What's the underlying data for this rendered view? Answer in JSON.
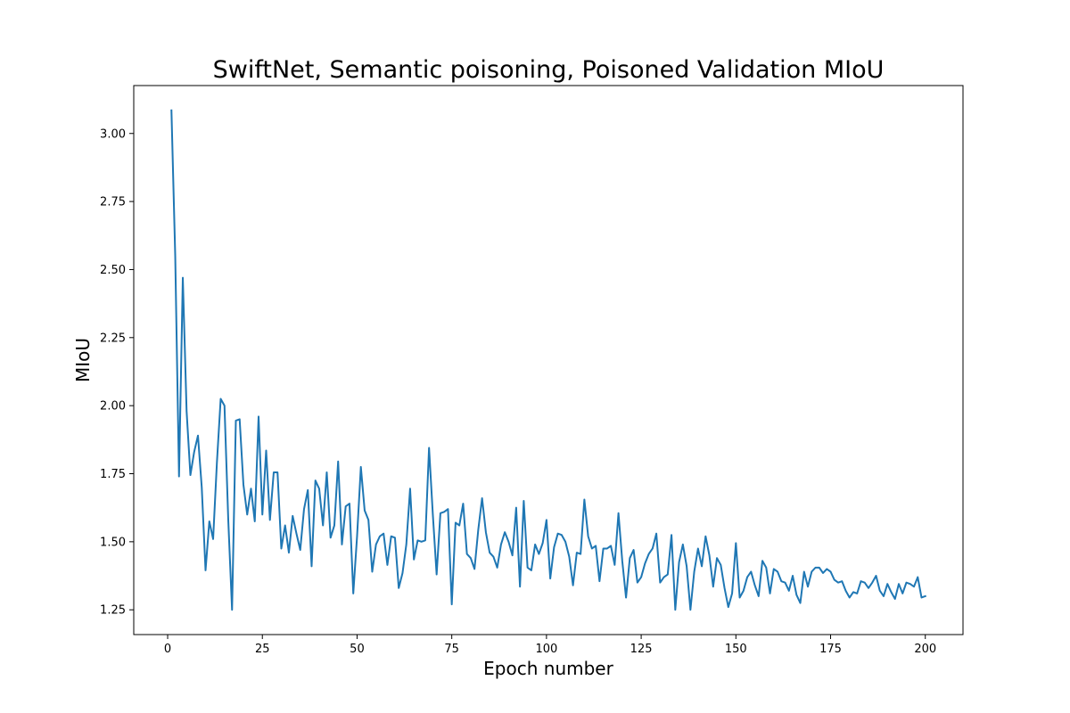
{
  "chart_data": {
    "type": "line",
    "title": "SwiftNet, Semantic poisoning, Poisoned Validation MIoU",
    "xlabel": "Epoch number",
    "ylabel": "MIoU",
    "xlim": [
      -8.95,
      209.95
    ],
    "ylim": [
      1.159,
      3.176
    ],
    "xticks": [
      0,
      25,
      50,
      75,
      100,
      125,
      150,
      175,
      200
    ],
    "yticks": [
      1.25,
      1.5,
      1.75,
      2.0,
      2.25,
      2.5,
      2.75,
      3.0
    ],
    "xtick_labels": [
      "0",
      "25",
      "50",
      "75",
      "100",
      "125",
      "150",
      "175",
      "200"
    ],
    "ytick_labels": [
      "1.25",
      "1.50",
      "1.75",
      "2.00",
      "2.25",
      "2.50",
      "2.75",
      "3.00"
    ],
    "grid": false,
    "line_color": "#1f77b4",
    "series": [
      {
        "x": [
          1,
          2,
          3,
          4,
          5,
          6,
          7,
          8,
          9,
          10,
          11,
          12,
          13,
          14,
          15,
          16,
          17,
          18,
          19,
          20,
          21,
          22,
          23,
          24,
          25,
          26,
          27,
          28,
          29,
          30,
          31,
          32,
          33,
          34,
          35,
          36,
          37,
          38,
          39,
          40,
          41,
          42,
          43,
          44,
          45,
          46,
          47,
          48,
          49,
          50,
          51,
          52,
          53,
          54,
          55,
          56,
          57,
          58,
          59,
          60,
          61,
          62,
          63,
          64,
          65,
          66,
          67,
          68,
          69,
          70,
          71,
          72,
          73,
          74,
          75,
          76,
          77,
          78,
          79,
          80,
          81,
          82,
          83,
          84,
          85,
          86,
          87,
          88,
          89,
          90,
          91,
          92,
          93,
          94,
          95,
          96,
          97,
          98,
          99,
          100,
          101,
          102,
          103,
          104,
          105,
          106,
          107,
          108,
          109,
          110,
          111,
          112,
          113,
          114,
          115,
          116,
          117,
          118,
          119,
          120,
          121,
          122,
          123,
          124,
          125,
          126,
          127,
          128,
          129,
          130,
          131,
          132,
          133,
          134,
          135,
          136,
          137,
          138,
          139,
          140,
          141,
          142,
          143,
          144,
          145,
          146,
          147,
          148,
          149,
          150,
          151,
          152,
          153,
          154,
          155,
          156,
          157,
          158,
          159,
          160,
          161,
          162,
          163,
          164,
          165,
          166,
          167,
          168,
          169,
          170,
          171,
          172,
          173,
          174,
          175,
          176,
          177,
          178,
          179,
          180,
          181,
          182,
          183,
          184,
          185,
          186,
          187,
          188,
          189,
          190,
          191,
          192,
          193,
          194,
          195,
          196,
          197,
          198,
          199,
          200
        ],
        "values": [
          3.085,
          2.55,
          1.74,
          2.47,
          1.98,
          1.745,
          1.83,
          1.89,
          1.7,
          1.395,
          1.575,
          1.51,
          1.79,
          2.025,
          2.0,
          1.58,
          1.25,
          1.945,
          1.95,
          1.71,
          1.6,
          1.695,
          1.575,
          1.96,
          1.6,
          1.835,
          1.58,
          1.755,
          1.755,
          1.475,
          1.56,
          1.46,
          1.595,
          1.53,
          1.47,
          1.62,
          1.69,
          1.41,
          1.725,
          1.695,
          1.56,
          1.755,
          1.515,
          1.56,
          1.795,
          1.49,
          1.63,
          1.64,
          1.31,
          1.52,
          1.775,
          1.615,
          1.58,
          1.39,
          1.49,
          1.52,
          1.53,
          1.415,
          1.52,
          1.515,
          1.33,
          1.385,
          1.49,
          1.695,
          1.435,
          1.505,
          1.5,
          1.505,
          1.845,
          1.6,
          1.38,
          1.605,
          1.61,
          1.62,
          1.27,
          1.57,
          1.56,
          1.64,
          1.455,
          1.44,
          1.4,
          1.545,
          1.66,
          1.535,
          1.46,
          1.445,
          1.405,
          1.49,
          1.535,
          1.5,
          1.45,
          1.625,
          1.335,
          1.65,
          1.405,
          1.395,
          1.49,
          1.455,
          1.495,
          1.58,
          1.365,
          1.48,
          1.53,
          1.525,
          1.5,
          1.445,
          1.34,
          1.46,
          1.455,
          1.655,
          1.52,
          1.475,
          1.485,
          1.355,
          1.475,
          1.475,
          1.485,
          1.415,
          1.605,
          1.43,
          1.295,
          1.44,
          1.47,
          1.35,
          1.37,
          1.42,
          1.455,
          1.475,
          1.53,
          1.35,
          1.37,
          1.38,
          1.525,
          1.25,
          1.425,
          1.49,
          1.41,
          1.25,
          1.39,
          1.475,
          1.41,
          1.52,
          1.45,
          1.335,
          1.44,
          1.415,
          1.33,
          1.26,
          1.31,
          1.495,
          1.295,
          1.32,
          1.37,
          1.39,
          1.34,
          1.3,
          1.43,
          1.405,
          1.31,
          1.4,
          1.39,
          1.355,
          1.35,
          1.32,
          1.375,
          1.305,
          1.275,
          1.39,
          1.335,
          1.39,
          1.405,
          1.405,
          1.385,
          1.4,
          1.39,
          1.36,
          1.35,
          1.355,
          1.32,
          1.295,
          1.315,
          1.31,
          1.355,
          1.35,
          1.33,
          1.35,
          1.375,
          1.32,
          1.3,
          1.345,
          1.315,
          1.29,
          1.345,
          1.31,
          1.35,
          1.345,
          1.335,
          1.37,
          1.295,
          1.3
        ]
      }
    ]
  }
}
